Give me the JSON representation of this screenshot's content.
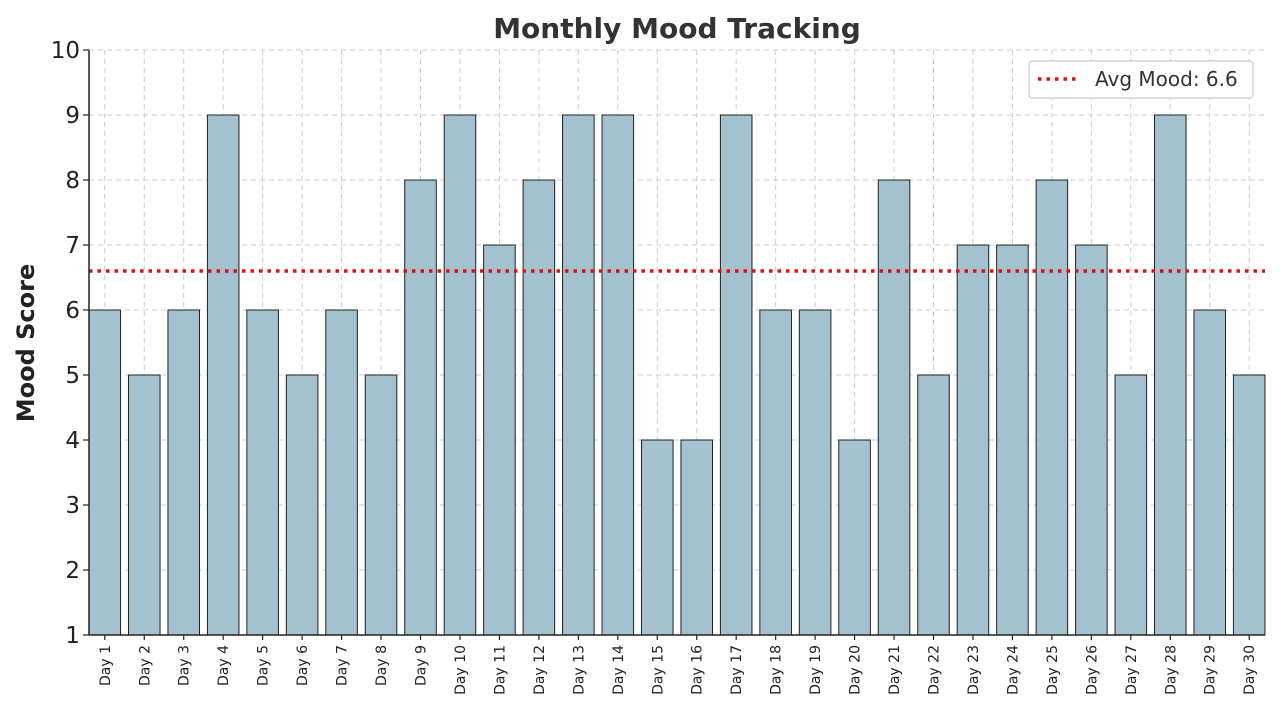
{
  "chart_data": {
    "type": "bar",
    "title": "Monthly Mood Tracking",
    "xlabel": "",
    "ylabel": "Mood Score",
    "ylim": [
      1,
      10
    ],
    "yticks": [
      1,
      2,
      3,
      4,
      5,
      6,
      7,
      8,
      9,
      10
    ],
    "categories": [
      "Day 1",
      "Day 2",
      "Day 3",
      "Day 4",
      "Day 5",
      "Day 6",
      "Day 7",
      "Day 8",
      "Day 9",
      "Day 10",
      "Day 11",
      "Day 12",
      "Day 13",
      "Day 14",
      "Day 15",
      "Day 16",
      "Day 17",
      "Day 18",
      "Day 19",
      "Day 20",
      "Day 21",
      "Day 22",
      "Day 23",
      "Day 24",
      "Day 25",
      "Day 26",
      "Day 27",
      "Day 28",
      "Day 29",
      "Day 30"
    ],
    "values": [
      6,
      5,
      6,
      9,
      6,
      5,
      6,
      5,
      8,
      9,
      7,
      8,
      9,
      9,
      4,
      4,
      9,
      6,
      6,
      4,
      8,
      5,
      7,
      7,
      8,
      7,
      5,
      9,
      6,
      5
    ],
    "reference_line": {
      "label": "Avg Mood: 6.6",
      "value": 6.6,
      "style": "dotted",
      "color": "#dd1111"
    },
    "grid": true,
    "legend_position": "top-right",
    "colors": {
      "bar_fill": "#a3c1ce",
      "bar_edge": "#222222",
      "grid": "#cccccc",
      "axis": "#222222"
    }
  }
}
